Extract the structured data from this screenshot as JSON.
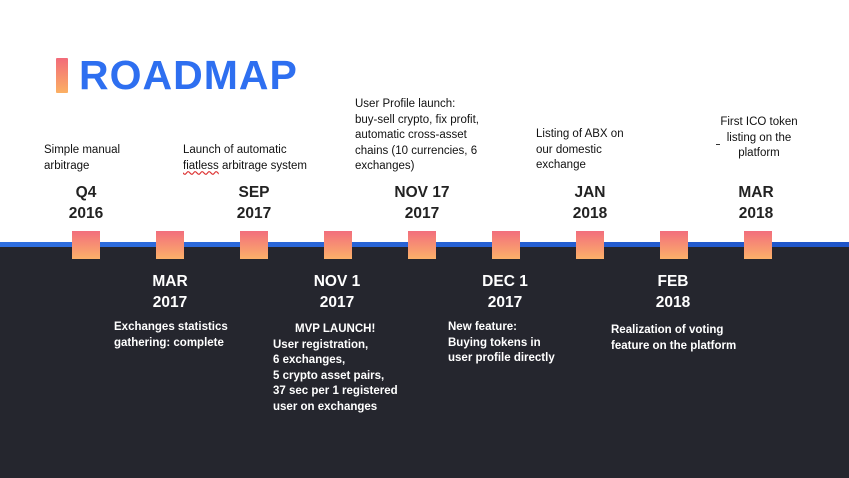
{
  "header": {
    "title": "ROADMAP"
  },
  "colors": {
    "accent_blue": "#2e6ff0",
    "dark_bg": "#25262e",
    "marker_top": "#f26e7d",
    "marker_bottom": "#fcb169"
  },
  "milestones_top": [
    {
      "date_line1": "Q4",
      "date_line2": "2016",
      "desc": [
        "Simple manual",
        "arbitrage"
      ]
    },
    {
      "date_line1": "SEP",
      "date_line2": "2017",
      "desc": [
        "Launch of automatic",
        "fiatless arbitrage system"
      ]
    },
    {
      "date_line1": "NOV 17",
      "date_line2": "2017",
      "desc": [
        "User Profile launch:",
        "buy-sell crypto, fix profit,",
        "automatic cross-asset",
        "chains (10 currencies, 6",
        "exchanges)"
      ]
    },
    {
      "date_line1": "JAN",
      "date_line2": "2018",
      "desc": [
        "Listing of ABX on",
        "our domestic",
        "exchange"
      ]
    },
    {
      "date_line1": "MAR",
      "date_line2": "2018",
      "desc": [
        "First ICO token",
        "listing on the",
        "platform"
      ]
    }
  ],
  "milestones_bottom": [
    {
      "date_line1": "MAR",
      "date_line2": "2017",
      "desc": [
        "Exchanges statistics",
        "gathering: complete"
      ]
    },
    {
      "date_line1": "NOV 1",
      "date_line2": "2017",
      "heading": "MVP LAUNCH!",
      "desc": [
        "User registration,",
        "6 exchanges,",
        "5 crypto asset pairs,",
        "37 sec per 1 registered",
        "user on exchanges"
      ]
    },
    {
      "date_line1": "DEC 1",
      "date_line2": "2017",
      "desc": [
        "New feature:",
        "Buying tokens in",
        "user profile directly"
      ]
    },
    {
      "date_line1": "FEB",
      "date_line2": "2018",
      "desc": [
        "Realization of voting",
        "feature on the platform"
      ]
    }
  ]
}
